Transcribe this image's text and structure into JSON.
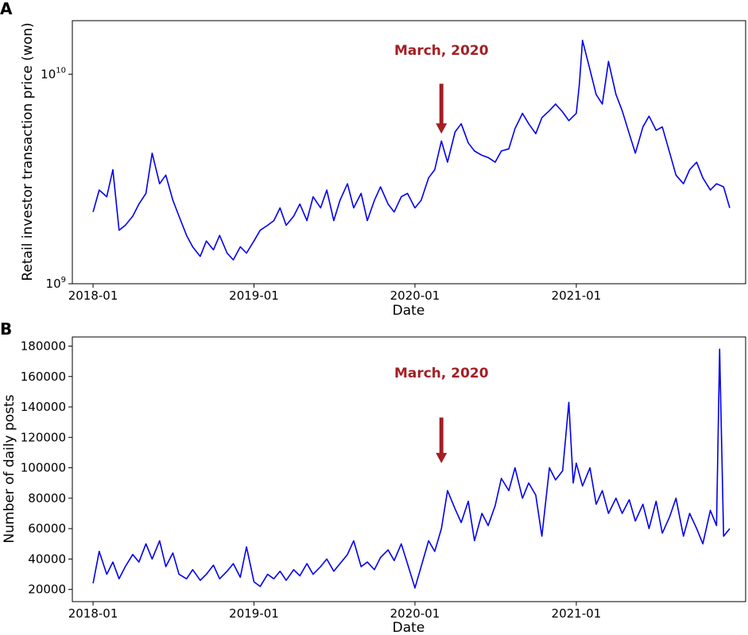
{
  "colors": {
    "series": "#0000ee",
    "annotation": "#a31f24"
  },
  "chart_data": [
    {
      "panel": "A",
      "type": "line",
      "xlabel": "Date",
      "ylabel": "Retail investor transaction price (won)",
      "yscale": "log",
      "ylim": [
        1000000000,
        18000000000
      ],
      "xlim": [
        "2017-11-15",
        "2022-01-20"
      ],
      "x_ticks": [
        {
          "date": "2018-01-01",
          "label": "2018-01"
        },
        {
          "date": "2019-01-01",
          "label": "2019-01"
        },
        {
          "date": "2020-01-01",
          "label": "2020-01"
        },
        {
          "date": "2021-01-01",
          "label": "2021-01"
        }
      ],
      "y_ticks": [
        {
          "value": 1000000000,
          "base": "10",
          "exp": "9"
        },
        {
          "value": 10000000000,
          "base": "10",
          "exp": "10"
        }
      ],
      "grid": false,
      "annotation": {
        "text": "March, 2020",
        "date": "2020-03-01",
        "arrow_from": 9000000000,
        "arrow_to": 5200000000
      },
      "series": [
        {
          "color": "#0000ee",
          "x": [
            "2018-01-01",
            "2018-01-15",
            "2018-02-01",
            "2018-02-15",
            "2018-03-01",
            "2018-03-15",
            "2018-04-01",
            "2018-04-15",
            "2018-05-01",
            "2018-05-15",
            "2018-06-01",
            "2018-06-15",
            "2018-07-01",
            "2018-07-15",
            "2018-08-01",
            "2018-08-15",
            "2018-09-01",
            "2018-09-15",
            "2018-10-01",
            "2018-10-15",
            "2018-11-01",
            "2018-11-15",
            "2018-12-01",
            "2018-12-15",
            "2019-01-01",
            "2019-01-15",
            "2019-02-01",
            "2019-02-15",
            "2019-03-01",
            "2019-03-15",
            "2019-04-01",
            "2019-04-15",
            "2019-05-01",
            "2019-05-15",
            "2019-06-01",
            "2019-06-15",
            "2019-07-01",
            "2019-07-15",
            "2019-08-01",
            "2019-08-15",
            "2019-09-01",
            "2019-09-15",
            "2019-10-01",
            "2019-10-15",
            "2019-11-01",
            "2019-11-15",
            "2019-12-01",
            "2019-12-15",
            "2020-01-01",
            "2020-01-15",
            "2020-02-01",
            "2020-02-15",
            "2020-03-01",
            "2020-03-15",
            "2020-04-01",
            "2020-04-15",
            "2020-05-01",
            "2020-05-15",
            "2020-06-01",
            "2020-06-15",
            "2020-07-01",
            "2020-07-15",
            "2020-08-01",
            "2020-08-15",
            "2020-09-01",
            "2020-09-15",
            "2020-10-01",
            "2020-10-15",
            "2020-11-01",
            "2020-11-15",
            "2020-12-01",
            "2020-12-15",
            "2021-01-01",
            "2021-01-08",
            "2021-01-15",
            "2021-02-01",
            "2021-02-15",
            "2021-03-01",
            "2021-03-15",
            "2021-04-01",
            "2021-04-15",
            "2021-05-01",
            "2021-05-15",
            "2021-06-01",
            "2021-06-15",
            "2021-07-01",
            "2021-07-15",
            "2021-08-01",
            "2021-08-15",
            "2021-09-01",
            "2021-09-15",
            "2021-10-01",
            "2021-10-15",
            "2021-11-01",
            "2021-11-15",
            "2021-12-01",
            "2021-12-15"
          ],
          "y": [
            2200000000,
            2800000000,
            2600000000,
            3500000000,
            1800000000,
            1900000000,
            2100000000,
            2400000000,
            2700000000,
            4200000000,
            3000000000,
            3300000000,
            2500000000,
            2100000000,
            1700000000,
            1500000000,
            1350000000,
            1600000000,
            1450000000,
            1700000000,
            1400000000,
            1300000000,
            1500000000,
            1400000000,
            1600000000,
            1800000000,
            1900000000,
            2000000000,
            2300000000,
            1900000000,
            2100000000,
            2400000000,
            2000000000,
            2600000000,
            2300000000,
            2800000000,
            2000000000,
            2500000000,
            3000000000,
            2300000000,
            2700000000,
            2000000000,
            2500000000,
            2900000000,
            2400000000,
            2200000000,
            2600000000,
            2700000000,
            2300000000,
            2500000000,
            3200000000,
            3500000000,
            4800000000,
            3800000000,
            5300000000,
            5800000000,
            4700000000,
            4300000000,
            4100000000,
            4000000000,
            3800000000,
            4300000000,
            4400000000,
            5500000000,
            6500000000,
            5800000000,
            5200000000,
            6200000000,
            6700000000,
            7200000000,
            6600000000,
            6000000000,
            6500000000,
            9000000000,
            14500000000,
            10500000000,
            8000000000,
            7200000000,
            11500000000,
            8000000000,
            6700000000,
            5200000000,
            4200000000,
            5600000000,
            6300000000,
            5400000000,
            5600000000,
            4200000000,
            3300000000,
            3000000000,
            3500000000,
            3800000000,
            3200000000,
            2800000000,
            3000000000,
            2900000000,
            2300000000
          ]
        }
      ]
    },
    {
      "panel": "B",
      "type": "line",
      "xlabel": "Date",
      "ylabel": "Number of daily posts",
      "yscale": "linear",
      "ylim": [
        12000,
        186000
      ],
      "xlim": [
        "2017-11-15",
        "2022-01-20"
      ],
      "x_ticks": [
        {
          "date": "2018-01-01",
          "label": "2018-01"
        },
        {
          "date": "2019-01-01",
          "label": "2019-01"
        },
        {
          "date": "2020-01-01",
          "label": "2020-01"
        },
        {
          "date": "2021-01-01",
          "label": "2021-01"
        }
      ],
      "y_ticks": [
        {
          "value": 20000,
          "label": "20000"
        },
        {
          "value": 40000,
          "label": "40000"
        },
        {
          "value": 60000,
          "label": "60000"
        },
        {
          "value": 80000,
          "label": "80000"
        },
        {
          "value": 100000,
          "label": "100000"
        },
        {
          "value": 120000,
          "label": "120000"
        },
        {
          "value": 140000,
          "label": "140000"
        },
        {
          "value": 160000,
          "label": "160000"
        },
        {
          "value": 180000,
          "label": "180000"
        }
      ],
      "grid": false,
      "annotation": {
        "text": "March, 2020",
        "date": "2020-03-01",
        "arrow_from": 133000,
        "arrow_to": 103000
      },
      "series": [
        {
          "color": "#0000ee",
          "x": [
            "2018-01-01",
            "2018-01-15",
            "2018-02-01",
            "2018-02-15",
            "2018-03-01",
            "2018-03-15",
            "2018-04-01",
            "2018-04-15",
            "2018-05-01",
            "2018-05-15",
            "2018-06-01",
            "2018-06-15",
            "2018-07-01",
            "2018-07-15",
            "2018-08-01",
            "2018-08-15",
            "2018-09-01",
            "2018-09-15",
            "2018-10-01",
            "2018-10-15",
            "2018-11-01",
            "2018-11-15",
            "2018-12-01",
            "2018-12-15",
            "2019-01-01",
            "2019-01-15",
            "2019-02-01",
            "2019-02-15",
            "2019-03-01",
            "2019-03-15",
            "2019-04-01",
            "2019-04-15",
            "2019-05-01",
            "2019-05-15",
            "2019-06-01",
            "2019-06-15",
            "2019-07-01",
            "2019-07-15",
            "2019-08-01",
            "2019-08-15",
            "2019-09-01",
            "2019-09-15",
            "2019-10-01",
            "2019-10-15",
            "2019-11-01",
            "2019-11-15",
            "2019-12-01",
            "2019-12-15",
            "2020-01-01",
            "2020-01-15",
            "2020-02-01",
            "2020-02-15",
            "2020-03-01",
            "2020-03-15",
            "2020-04-01",
            "2020-04-15",
            "2020-05-01",
            "2020-05-15",
            "2020-06-01",
            "2020-06-15",
            "2020-07-01",
            "2020-07-15",
            "2020-08-01",
            "2020-08-15",
            "2020-09-01",
            "2020-09-15",
            "2020-10-01",
            "2020-10-15",
            "2020-11-01",
            "2020-11-15",
            "2020-12-01",
            "2020-12-15",
            "2020-12-25",
            "2021-01-01",
            "2021-01-15",
            "2021-02-01",
            "2021-02-15",
            "2021-03-01",
            "2021-03-15",
            "2021-04-01",
            "2021-04-15",
            "2021-05-01",
            "2021-05-15",
            "2021-06-01",
            "2021-06-15",
            "2021-07-01",
            "2021-07-15",
            "2021-08-01",
            "2021-08-15",
            "2021-09-01",
            "2021-09-15",
            "2021-10-01",
            "2021-10-15",
            "2021-11-01",
            "2021-11-15",
            "2021-11-22",
            "2021-12-01",
            "2021-12-15"
          ],
          "y": [
            24000,
            45000,
            30000,
            38000,
            27000,
            35000,
            43000,
            38000,
            50000,
            40000,
            52000,
            35000,
            44000,
            30000,
            27000,
            33000,
            26000,
            30000,
            36000,
            27000,
            32000,
            37000,
            28000,
            48000,
            25000,
            22000,
            30000,
            27000,
            32000,
            26000,
            33000,
            29000,
            37000,
            30000,
            35000,
            40000,
            32000,
            37000,
            43000,
            52000,
            35000,
            38000,
            33000,
            41000,
            46000,
            39000,
            50000,
            37000,
            21000,
            35000,
            52000,
            45000,
            60000,
            85000,
            73000,
            64000,
            78000,
            52000,
            70000,
            62000,
            75000,
            93000,
            85000,
            100000,
            80000,
            90000,
            82000,
            55000,
            100000,
            92000,
            98000,
            143000,
            90000,
            103000,
            88000,
            100000,
            76000,
            85000,
            70000,
            80000,
            70000,
            79000,
            65000,
            76000,
            60000,
            78000,
            57000,
            68000,
            80000,
            55000,
            70000,
            60000,
            50000,
            72000,
            62000,
            178000,
            55000,
            60000
          ]
        }
      ]
    }
  ]
}
